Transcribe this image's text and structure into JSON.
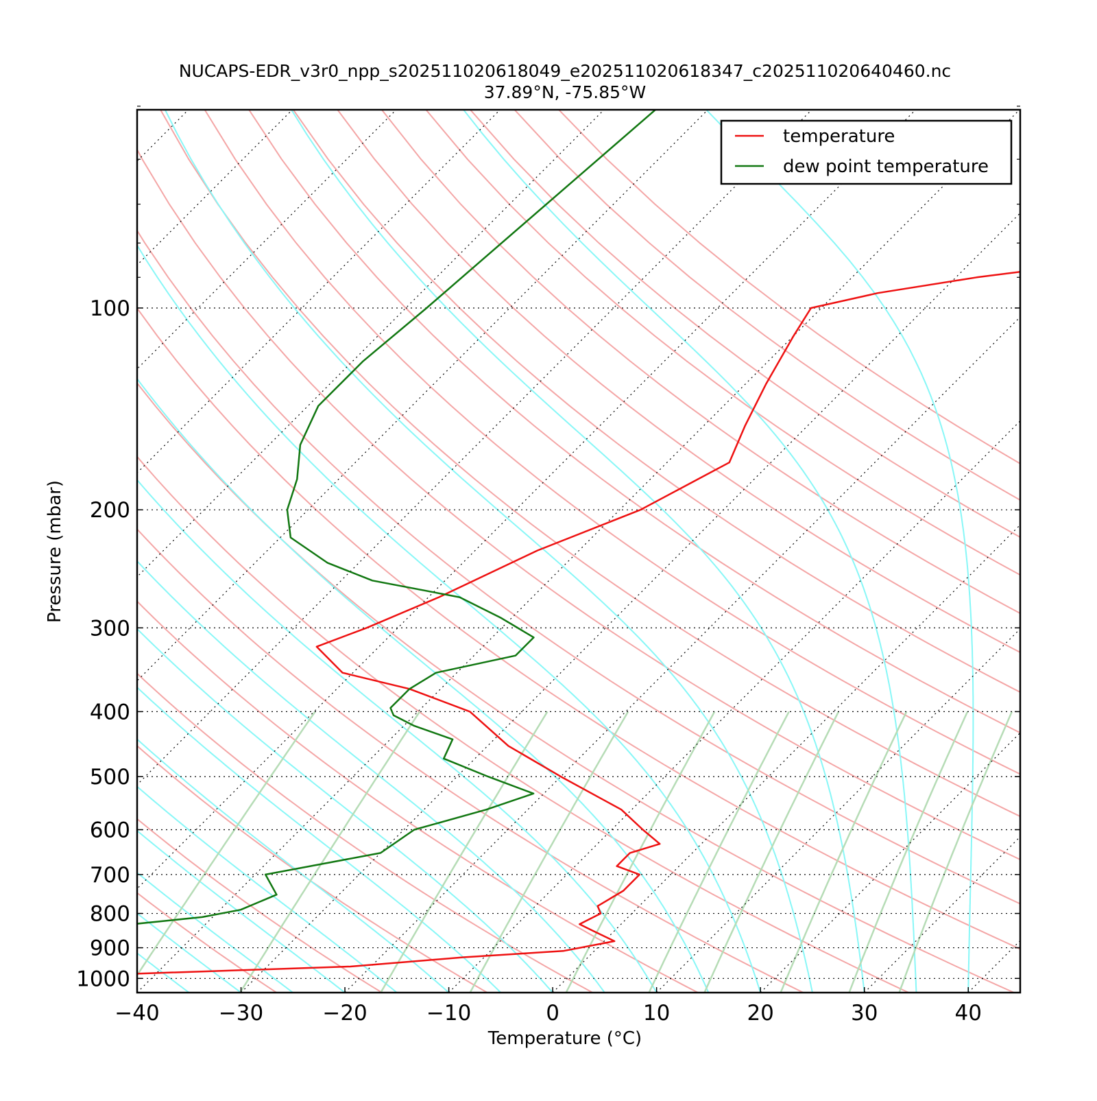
{
  "title": {
    "line1": "NUCAPS-EDR_v3r0_npp_s202511020618049_e202511020618347_c202511020640460.nc",
    "line2": "37.89°N, -75.85°W"
  },
  "chart_data": {
    "type": "line",
    "subtype": "skew-t log-p",
    "xlabel": "Temperature (°C)",
    "ylabel": "Pressure (mbar)",
    "xlim": [
      -40,
      45
    ],
    "ylim": [
      1050,
      50
    ],
    "y_scale": "log",
    "skew": true,
    "grid": true,
    "legend_position": "top-right",
    "x_ticks": [
      -40,
      -30,
      -20,
      -10,
      0,
      10,
      20,
      30,
      40
    ],
    "x_tick_labels": [
      "−40",
      "−30",
      "−20",
      "−10",
      "0",
      "10",
      "20",
      "30",
      "40"
    ],
    "y_ticks": [
      100,
      200,
      300,
      400,
      500,
      600,
      700,
      800,
      900,
      1000
    ],
    "y_tick_labels": [
      "100",
      "200",
      "300",
      "400",
      "500",
      "600",
      "700",
      "800",
      "900",
      "1000"
    ],
    "series": [
      {
        "name": "temperature",
        "color": "#ee1111",
        "pressure": [
          1050,
          1000,
          960,
          930,
          910,
          880,
          850,
          830,
          800,
          780,
          740,
          700,
          680,
          650,
          630,
          600,
          560,
          500,
          450,
          400,
          370,
          350,
          320,
          300,
          270,
          230,
          200,
          170,
          150,
          130,
          110,
          100,
          95,
          90,
          85,
          80,
          75,
          70,
          65,
          60,
          55,
          50
        ],
        "values": [
          -58,
          -55,
          -22,
          -12,
          -3,
          1,
          -2,
          -4,
          -3,
          -4,
          -3,
          -3,
          -6,
          -6,
          -4,
          -7,
          -11,
          -20,
          -28,
          -35,
          -43,
          -51,
          -56,
          -53,
          -49,
          -44,
          -38,
          -34,
          -36,
          -38,
          -40,
          -41,
          -36,
          -28,
          -17,
          -5,
          6,
          16,
          24,
          32,
          40,
          48
        ]
      },
      {
        "name": "dew point temperature",
        "color": "#117711",
        "pressure": [
          1050,
          1020,
          1000,
          960,
          930,
          900,
          880,
          860,
          830,
          810,
          790,
          750,
          700,
          650,
          600,
          560,
          530,
          500,
          470,
          440,
          420,
          405,
          395,
          370,
          350,
          330,
          310,
          290,
          270,
          255,
          240,
          220,
          200,
          180,
          160,
          140,
          120,
          100,
          50
        ],
        "values": [
          -88,
          -88,
          -86,
          -80,
          -71,
          -70,
          -67,
          -53,
          -47,
          -41,
          -38,
          -36,
          -39,
          -30,
          -29,
          -24,
          -21,
          -27,
          -33,
          -34,
          -39,
          -42,
          -43,
          -43,
          -42,
          -36,
          -36,
          -41,
          -47,
          -57,
          -63,
          -69,
          -72,
          -74,
          -77,
          -79,
          -79,
          -78,
          -75
        ]
      }
    ],
    "background_lines": {
      "isobars": "dotted black",
      "isotherms": "dotted black, skewed",
      "dry_adiabats": "light red",
      "moist_adiabats": "cyan",
      "mixing_ratio_lines": "light green"
    }
  }
}
